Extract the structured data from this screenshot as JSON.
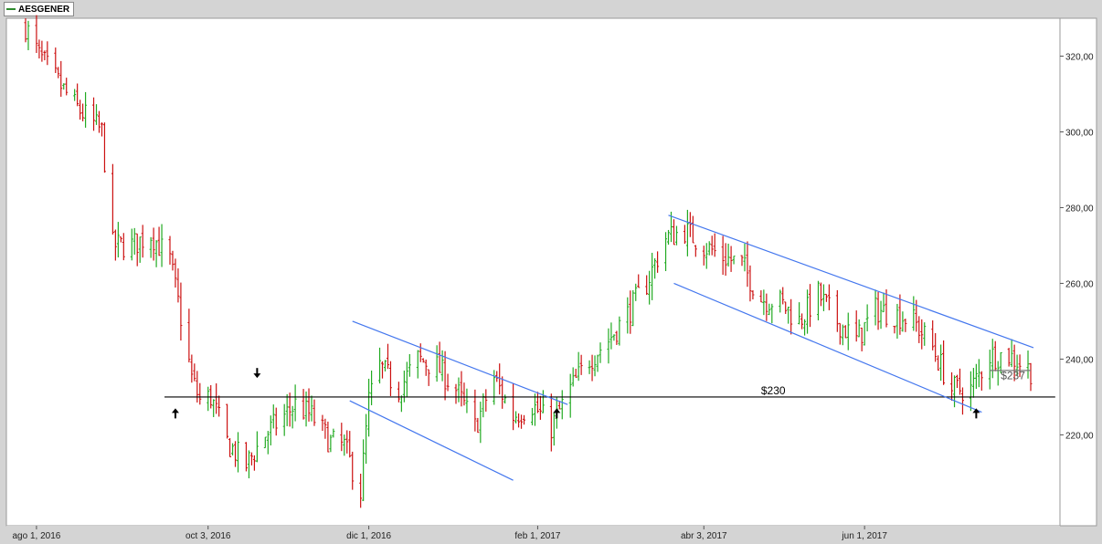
{
  "legend": {
    "label": "AESGENER",
    "color": "#2e8b2e"
  },
  "chart_data": {
    "type": "bar",
    "subtype": "ohlc",
    "title": "",
    "xlabel": "",
    "ylabel": "",
    "x_ticks": [
      "ago 1, 2016",
      "oct 3, 2016",
      "dic 1, 2016",
      "feb 1, 2017",
      "abr 3, 2017",
      "jun 1, 2017"
    ],
    "y_ticks": [
      "220,00",
      "240,00",
      "260,00",
      "280,00",
      "300,00",
      "320,00"
    ],
    "y_tick_values": [
      220,
      240,
      260,
      280,
      300,
      320
    ],
    "ylim": [
      196,
      330
    ],
    "date_range": [
      "2016-07-28",
      "2017-08-01"
    ],
    "grid": false,
    "up_color": "#22aa22",
    "down_color": "#cc1111",
    "trend_color": "#4477ee",
    "price_anchors": [
      [
        "2016-07-28",
        328
      ],
      [
        "2016-08-02",
        320
      ],
      [
        "2016-08-15",
        307
      ],
      [
        "2016-08-25",
        300
      ],
      [
        "2016-08-29",
        270
      ],
      [
        "2016-09-05",
        270
      ],
      [
        "2016-09-12",
        273
      ],
      [
        "2016-09-19",
        266
      ],
      [
        "2016-09-22",
        255
      ],
      [
        "2016-09-27",
        235
      ],
      [
        "2016-09-30",
        229
      ],
      [
        "2016-10-04",
        230
      ],
      [
        "2016-10-10",
        218
      ],
      [
        "2016-10-17",
        212
      ],
      [
        "2016-10-24",
        220
      ],
      [
        "2016-10-31",
        225
      ],
      [
        "2016-11-04",
        228
      ],
      [
        "2016-11-10",
        225
      ],
      [
        "2016-11-17",
        218
      ],
      [
        "2016-11-22",
        217
      ],
      [
        "2016-11-28",
        205
      ],
      [
        "2016-12-01",
        229
      ],
      [
        "2016-12-05",
        238
      ],
      [
        "2016-12-12",
        232
      ],
      [
        "2016-12-19",
        240
      ],
      [
        "2016-12-26",
        238
      ],
      [
        "2017-01-02",
        232
      ],
      [
        "2017-01-09",
        222
      ],
      [
        "2017-01-16",
        235
      ],
      [
        "2017-01-23",
        225
      ],
      [
        "2017-01-30",
        228
      ],
      [
        "2017-02-06",
        222
      ],
      [
        "2017-02-13",
        232
      ],
      [
        "2017-02-20",
        240
      ],
      [
        "2017-02-27",
        245
      ],
      [
        "2017-03-06",
        252
      ],
      [
        "2017-03-13",
        260
      ],
      [
        "2017-03-20",
        272
      ],
      [
        "2017-03-27",
        274
      ],
      [
        "2017-04-03",
        270
      ],
      [
        "2017-04-10",
        267
      ],
      [
        "2017-04-17",
        265
      ],
      [
        "2017-04-24",
        256
      ],
      [
        "2017-05-01",
        255
      ],
      [
        "2017-05-08",
        250
      ],
      [
        "2017-05-15",
        257
      ],
      [
        "2017-05-22",
        250
      ],
      [
        "2017-05-29",
        245
      ],
      [
        "2017-06-05",
        253
      ],
      [
        "2017-06-12",
        252
      ],
      [
        "2017-06-19",
        250
      ],
      [
        "2017-06-26",
        243
      ],
      [
        "2017-07-03",
        232
      ],
      [
        "2017-07-10",
        232
      ],
      [
        "2017-07-17",
        241
      ],
      [
        "2017-07-24",
        241
      ],
      [
        "2017-08-01",
        237
      ]
    ],
    "lines": [
      {
        "name": "support",
        "color": "#000000",
        "points": [
          [
            "2016-09-17",
            230
          ],
          [
            "2017-08-10",
            230
          ]
        ]
      },
      {
        "name": "channel-upper-1",
        "color": "#4477ee",
        "points": [
          [
            "2016-11-25",
            250
          ],
          [
            "2017-02-12",
            228
          ]
        ]
      },
      {
        "name": "channel-lower-1",
        "color": "#4477ee",
        "points": [
          [
            "2016-11-24",
            229
          ],
          [
            "2017-01-23",
            208
          ]
        ]
      },
      {
        "name": "channel-upper-2",
        "color": "#4477ee",
        "points": [
          [
            "2017-03-21",
            278
          ],
          [
            "2017-08-02",
            243
          ]
        ]
      },
      {
        "name": "channel-lower-2",
        "color": "#4477ee",
        "points": [
          [
            "2017-03-23",
            260
          ],
          [
            "2017-07-14",
            226
          ]
        ]
      },
      {
        "name": "price-marker-line",
        "color": "#777777",
        "points": [
          [
            "2017-07-17",
            237
          ],
          [
            "2017-08-01",
            237
          ]
        ]
      }
    ],
    "annotations": [
      {
        "text": "$230",
        "x": "2017-04-24",
        "y": 230,
        "color": "#000000"
      },
      {
        "text": "$237",
        "x": "2017-07-21",
        "y": 234,
        "color": "#555555"
      }
    ],
    "arrows": [
      {
        "dir": "up",
        "x": "2016-09-21",
        "y": 227
      },
      {
        "dir": "down",
        "x": "2016-10-21",
        "y": 235
      },
      {
        "dir": "up",
        "x": "2017-02-08",
        "y": 227
      },
      {
        "dir": "up",
        "x": "2017-07-12",
        "y": 227
      }
    ]
  }
}
